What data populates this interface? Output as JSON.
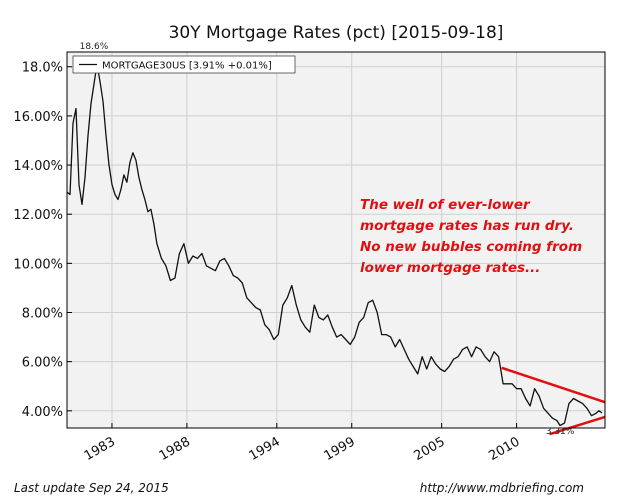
{
  "chart_data": {
    "type": "line",
    "title": "30Y Mortgage Rates (pct) [2015-09-18]",
    "legend": "MORTGAGE30US [3.91% +0.01%]",
    "legend_position": "top-left",
    "xlabel": "",
    "ylabel": "",
    "xlim": [
      1980.0,
      2015.9
    ],
    "ylim": [
      3.3,
      18.6
    ],
    "x_ticks": [
      1983,
      1988,
      1994,
      1999,
      2005,
      2010
    ],
    "x_tick_labels": [
      "1983",
      "1988",
      "1994",
      "1999",
      "2005",
      "2010"
    ],
    "y_ticks": [
      4,
      6,
      8,
      10,
      12,
      14,
      16,
      18
    ],
    "y_tick_labels": [
      "4.00%",
      "6.00%",
      "8.00%",
      "10.00%",
      "12.00%",
      "14.00%",
      "16.00%",
      "18.0%"
    ],
    "grid": true,
    "annotations": [
      {
        "text": "18.6%",
        "x": 1981.8,
        "y": 18.6
      },
      {
        "text": "3.31%",
        "x": 2012.9,
        "y": 3.31
      }
    ],
    "callout_lines": [
      "The well of ever-lower",
      "mortgage rates has run dry.",
      "No new bubbles coming from",
      "lower mortgage rates..."
    ],
    "trend_lines": [
      {
        "from": [
          2009.0,
          5.75
        ],
        "to": [
          2015.9,
          4.35
        ]
      },
      {
        "from": [
          2012.2,
          3.05
        ],
        "to": [
          2015.9,
          3.75
        ]
      }
    ],
    "series": [
      {
        "name": "MORTGAGE30US",
        "x": [
          1980.0,
          1980.2,
          1980.4,
          1980.6,
          1980.8,
          1981.0,
          1981.2,
          1981.4,
          1981.6,
          1981.8,
          1982.0,
          1982.2,
          1982.4,
          1982.6,
          1982.8,
          1983.0,
          1983.2,
          1983.4,
          1983.6,
          1983.8,
          1984.0,
          1984.2,
          1984.4,
          1984.6,
          1984.8,
          1985.0,
          1985.2,
          1985.4,
          1985.6,
          1985.8,
          1986.0,
          1986.3,
          1986.6,
          1986.9,
          1987.2,
          1987.5,
          1987.8,
          1988.1,
          1988.4,
          1988.7,
          1989.0,
          1989.3,
          1989.6,
          1989.9,
          1990.2,
          1990.5,
          1990.8,
          1991.1,
          1991.4,
          1991.7,
          1992.0,
          1992.3,
          1992.6,
          1992.9,
          1993.2,
          1993.5,
          1993.8,
          1994.1,
          1994.4,
          1994.7,
          1995.0,
          1995.3,
          1995.6,
          1995.9,
          1996.2,
          1996.5,
          1996.8,
          1997.1,
          1997.4,
          1997.7,
          1998.0,
          1998.3,
          1998.6,
          1998.9,
          1999.2,
          1999.5,
          1999.8,
          2000.1,
          2000.4,
          2000.7,
          2001.0,
          2001.3,
          2001.6,
          2001.9,
          2002.2,
          2002.5,
          2002.8,
          2003.1,
          2003.4,
          2003.7,
          2004.0,
          2004.3,
          2004.6,
          2004.9,
          2005.2,
          2005.5,
          2005.8,
          2006.1,
          2006.4,
          2006.7,
          2007.0,
          2007.3,
          2007.6,
          2007.9,
          2008.2,
          2008.5,
          2008.8,
          2009.1,
          2009.4,
          2009.7,
          2010.0,
          2010.3,
          2010.6,
          2010.9,
          2011.2,
          2011.5,
          2011.8,
          2012.1,
          2012.4,
          2012.7,
          2012.9,
          2013.2,
          2013.5,
          2013.8,
          2014.1,
          2014.4,
          2014.7,
          2015.0,
          2015.3,
          2015.5,
          2015.7
        ],
        "values": [
          12.9,
          12.8,
          15.7,
          16.3,
          13.2,
          12.4,
          13.5,
          15.2,
          16.5,
          17.3,
          18.1,
          17.4,
          16.6,
          15.2,
          14.0,
          13.2,
          12.8,
          12.6,
          13.0,
          13.6,
          13.3,
          14.1,
          14.5,
          14.2,
          13.5,
          13.0,
          12.6,
          12.1,
          12.2,
          11.6,
          10.8,
          10.2,
          9.9,
          9.3,
          9.4,
          10.4,
          10.8,
          10.0,
          10.3,
          10.2,
          10.4,
          9.9,
          9.8,
          9.7,
          10.1,
          10.2,
          9.9,
          9.5,
          9.4,
          9.2,
          8.6,
          8.4,
          8.2,
          8.1,
          7.5,
          7.3,
          6.9,
          7.1,
          8.3,
          8.6,
          9.1,
          8.3,
          7.7,
          7.4,
          7.2,
          8.3,
          7.8,
          7.7,
          7.9,
          7.4,
          7.0,
          7.1,
          6.9,
          6.7,
          7.0,
          7.6,
          7.8,
          8.4,
          8.5,
          8.0,
          7.1,
          7.1,
          7.0,
          6.6,
          6.9,
          6.5,
          6.1,
          5.8,
          5.5,
          6.2,
          5.7,
          6.2,
          5.9,
          5.7,
          5.6,
          5.8,
          6.1,
          6.2,
          6.5,
          6.6,
          6.2,
          6.6,
          6.5,
          6.2,
          6.0,
          6.4,
          6.2,
          5.1,
          5.1,
          5.1,
          4.9,
          4.9,
          4.5,
          4.2,
          4.9,
          4.6,
          4.1,
          3.9,
          3.7,
          3.6,
          3.4,
          3.5,
          4.3,
          4.5,
          4.4,
          4.3,
          4.1,
          3.8,
          3.9,
          4.0,
          3.91
        ]
      }
    ]
  },
  "footer": {
    "last_update": "Last update Sep 24, 2015",
    "source_url": "http://www.mdbriefing.com"
  },
  "colors": {
    "plot_bg": "#f2f2f2",
    "grid": "#cfcfcf",
    "line": "#111111",
    "callout": "#e01010",
    "trend": "#e01010"
  }
}
